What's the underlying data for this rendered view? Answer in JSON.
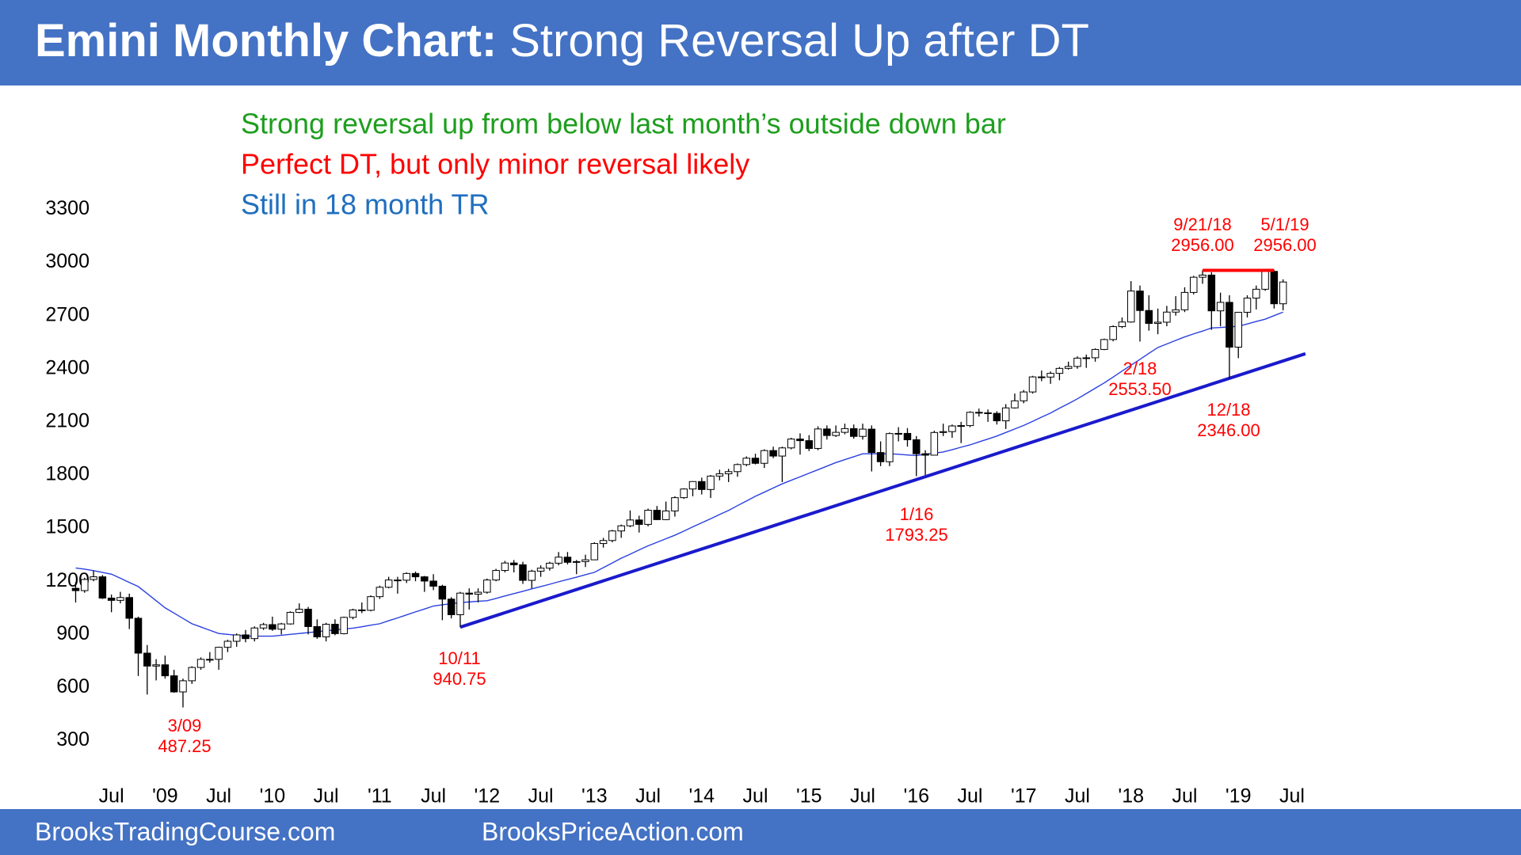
{
  "chart_data": {
    "type": "candlestick",
    "title": "Emini Monthly Chart:",
    "subtitle": "Strong Reversal Up after DT",
    "comments": [
      {
        "text": "Strong reversal up from below last month’s outside down bar",
        "color": "#1e9e1e"
      },
      {
        "text": "Perfect DT, but only minor reversal likely",
        "color": "#ff0000"
      },
      {
        "text": "Still in 18 month TR",
        "color": "#1f6fbf"
      }
    ],
    "categories": [
      null,
      null,
      null,
      null,
      "Jul",
      null,
      null,
      null,
      null,
      null,
      "'09",
      null,
      null,
      null,
      null,
      null,
      "Jul",
      null,
      null,
      null,
      null,
      null,
      "'10",
      null,
      null,
      null,
      null,
      null,
      "Jul",
      null,
      null,
      null,
      null,
      null,
      "'11",
      null,
      null,
      null,
      null,
      null,
      "Jul",
      null,
      null,
      null,
      null,
      null,
      "'12",
      null,
      null,
      null,
      null,
      null,
      "Jul",
      null,
      null,
      null,
      null,
      null,
      "'13",
      null,
      null,
      null,
      null,
      null,
      "Jul",
      null,
      null,
      null,
      null,
      null,
      "'14",
      null,
      null,
      null,
      null,
      null,
      "Jul",
      null,
      null,
      null,
      null,
      null,
      "'15",
      null,
      null,
      null,
      null,
      null,
      "Jul",
      null,
      null,
      null,
      null,
      null,
      "'16",
      null,
      null,
      null,
      null,
      null,
      "Jul",
      null,
      null,
      null,
      null,
      null,
      "'17",
      null,
      null,
      null,
      null,
      null,
      "Jul",
      null,
      null,
      null,
      null,
      null,
      "'18",
      null,
      null,
      null,
      null,
      null,
      "Jul",
      null,
      null,
      null,
      null,
      null,
      "'19",
      null,
      null,
      null,
      null,
      null,
      "Jul"
    ],
    "open": [
      1160,
      1147,
      1210,
      1225,
      1105,
      1092,
      1108,
      991,
      794,
      721,
      728,
      666,
      575,
      638,
      713,
      759,
      759,
      827,
      861,
      897,
      876,
      936,
      955,
      929,
      959,
      1024,
      1042,
      944,
      886,
      957,
      904,
      996,
      1038,
      1036,
      1113,
      1166,
      1207,
      1206,
      1244,
      1225,
      1201,
      1172,
      1099,
      1011,
      1133,
      1127,
      1138,
      1207,
      1261,
      1303,
      1293,
      1205,
      1257,
      1274,
      1302,
      1336,
      1307,
      1311,
      1321,
      1413,
      1430,
      1484,
      1513,
      1546,
      1521,
      1601,
      1548,
      1597,
      1672,
      1721,
      1763,
      1718,
      1794,
      1807,
      1819,
      1859,
      1895,
      1866,
      1938,
      1907,
      1953,
      2003,
      1994,
      1950,
      2060,
      2023,
      2041,
      2062,
      2018,
      2059,
      1927,
      1875,
      2034,
      2035,
      1999,
      1920,
      1912,
      2040,
      2045,
      2077,
      2079,
      2154,
      2151,
      2148,
      2106,
      2179,
      2219,
      2269,
      2354,
      2353,
      2374,
      2402,
      2413,
      2460,
      2462,
      2509,
      2565,
      2638,
      2664,
      2839,
      2729,
      2656,
      2663,
      2720,
      2733,
      2831,
      2917,
      2929,
      2727,
      2775,
      2522,
      2719,
      2799,
      2849,
      2950,
      2767,
      null
    ],
    "high": [
      1195,
      1220,
      1260,
      1235,
      1125,
      1140,
      1130,
      1000,
      840,
      760,
      780,
      700,
      650,
      720,
      770,
      800,
      830,
      870,
      905,
      925,
      945,
      965,
      1000,
      965,
      1030,
      1075,
      1055,
      985,
      965,
      985,
      1000,
      1045,
      1080,
      1120,
      1175,
      1225,
      1225,
      1250,
      1255,
      1230,
      1240,
      1180,
      1110,
      1140,
      1160,
      1160,
      1215,
      1270,
      1315,
      1320,
      1310,
      1265,
      1290,
      1310,
      1365,
      1365,
      1320,
      1350,
      1420,
      1445,
      1490,
      1520,
      1600,
      1570,
      1610,
      1625,
      1650,
      1680,
      1725,
      1765,
      1785,
      1800,
      1830,
      1835,
      1865,
      1905,
      1920,
      1945,
      1960,
      1960,
      2010,
      2035,
      2025,
      2075,
      2080,
      2080,
      2090,
      2085,
      2090,
      2080,
      1990,
      2040,
      2070,
      2065,
      2020,
      1940,
      2050,
      2090,
      2085,
      2100,
      2160,
      2175,
      2170,
      2160,
      2200,
      2260,
      2280,
      2360,
      2390,
      2385,
      2410,
      2440,
      2470,
      2480,
      2515,
      2570,
      2645,
      2690,
      2895,
      2870,
      2815,
      2740,
      2755,
      2810,
      2860,
      2925,
      2956,
      2945,
      2830,
      2815,
      2720,
      2815,
      2870,
      2955,
      2956,
      2905,
      null
    ],
    "low": [
      1080,
      1135,
      1200,
      1100,
      1025,
      1075,
      930,
      665,
      560,
      640,
      650,
      570,
      487.25,
      620,
      700,
      740,
      700,
      800,
      830,
      855,
      860,
      925,
      920,
      900,
      955,
      1020,
      900,
      875,
      860,
      895,
      900,
      985,
      1020,
      1030,
      1100,
      1160,
      1130,
      1190,
      1200,
      1140,
      1150,
      980,
      990,
      940.75,
      1040,
      1080,
      1130,
      1200,
      1250,
      1250,
      1185,
      1160,
      1225,
      1260,
      1290,
      1295,
      1240,
      1280,
      1320,
      1390,
      1420,
      1445,
      1505,
      1475,
      1510,
      1545,
      1545,
      1565,
      1665,
      1680,
      1690,
      1670,
      1770,
      1760,
      1790,
      1850,
      1860,
      1840,
      1895,
      1760,
      1945,
      1915,
      1935,
      1940,
      2000,
      2015,
      2030,
      2005,
      2000,
      1820,
      1850,
      1850,
      1990,
      1960,
      1793.25,
      1800,
      1910,
      2020,
      2010,
      1980,
      2070,
      2130,
      2100,
      2085,
      2060,
      2175,
      2205,
      2260,
      2330,
      2315,
      2335,
      2395,
      2400,
      2405,
      2440,
      2505,
      2555,
      2630,
      2660,
      2553.5,
      2615,
      2595,
      2640,
      2700,
      2720,
      2820,
      2880,
      2620,
      2640,
      2346,
      2460,
      2690,
      2735,
      2840,
      2740,
      2730,
      null
    ],
    "close": [
      1147,
      1210,
      1225,
      1105,
      1092,
      1108,
      991,
      794,
      721,
      728,
      666,
      575,
      638,
      713,
      759,
      759,
      827,
      861,
      897,
      876,
      936,
      955,
      929,
      959,
      1024,
      1042,
      944,
      886,
      957,
      904,
      996,
      1038,
      1036,
      1113,
      1166,
      1207,
      1206,
      1244,
      1225,
      1201,
      1172,
      1099,
      1011,
      1133,
      1127,
      1138,
      1207,
      1261,
      1303,
      1293,
      1205,
      1257,
      1274,
      1302,
      1336,
      1307,
      1311,
      1321,
      1413,
      1430,
      1484,
      1513,
      1546,
      1521,
      1601,
      1548,
      1597,
      1672,
      1721,
      1763,
      1718,
      1794,
      1807,
      1819,
      1859,
      1895,
      1866,
      1938,
      1907,
      1953,
      2003,
      1994,
      1950,
      2060,
      2023,
      2041,
      2062,
      2018,
      2059,
      1927,
      1875,
      2034,
      2035,
      1999,
      1920,
      1912,
      2040,
      2045,
      2077,
      2079,
      2154,
      2151,
      2148,
      2106,
      2179,
      2219,
      2269,
      2354,
      2353,
      2374,
      2402,
      2413,
      2460,
      2462,
      2509,
      2565,
      2638,
      2664,
      2839,
      2729,
      2656,
      2663,
      2720,
      2733,
      2831,
      2917,
      2929,
      2727,
      2775,
      2522,
      2719,
      2799,
      2849,
      2950,
      2767,
      2890,
      null
    ],
    "up_color": "#ffffff",
    "down_color": "#000000",
    "moving_average": {
      "color": "#2a3fe0",
      "values": [
        1275,
        1268,
        1260,
        1250,
        1240,
        1217,
        1193,
        1170,
        1130,
        1090,
        1050,
        1020,
        990,
        960,
        942,
        923,
        905,
        900,
        895,
        890,
        890,
        890,
        890,
        895,
        900,
        905,
        910,
        915,
        920,
        925,
        930,
        935,
        943,
        952,
        960,
        977,
        993,
        1010,
        1027,
        1043,
        1060,
        1067,
        1073,
        1080,
        1083,
        1087,
        1090,
        1103,
        1117,
        1130,
        1143,
        1157,
        1170,
        1183,
        1197,
        1210,
        1223,
        1237,
        1250,
        1277,
        1303,
        1330,
        1353,
        1377,
        1400,
        1420,
        1440,
        1460,
        1483,
        1507,
        1530,
        1553,
        1577,
        1600,
        1627,
        1653,
        1680,
        1703,
        1727,
        1750,
        1770,
        1790,
        1810,
        1830,
        1850,
        1870,
        1887,
        1903,
        1920,
        1920,
        1920,
        1920,
        1917,
        1913,
        1910,
        1917,
        1923,
        1930,
        1943,
        1957,
        1970,
        1987,
        2003,
        2020,
        2040,
        2060,
        2080,
        2103,
        2127,
        2150,
        2177,
        2203,
        2230,
        2260,
        2290,
        2320,
        2353,
        2387,
        2420,
        2453,
        2487,
        2520,
        2540,
        2560,
        2580,
        2597,
        2613,
        2630,
        2633,
        2637,
        2640,
        2653,
        2667,
        2680,
        2700,
        2720,
        null
      ]
    },
    "trend_line_color": "#1a1acc",
    "double_top_color": "#ff0000",
    "point_labels": [
      {
        "date": "3/09",
        "price": "487.25"
      },
      {
        "date": "10/11",
        "price": "940.75"
      },
      {
        "date": "1/16",
        "price": "1793.25"
      },
      {
        "date": "2/18",
        "price": "2553.50"
      },
      {
        "date": "12/18",
        "price": "2346.00"
      },
      {
        "date": "9/21/18",
        "price": "2956.00"
      },
      {
        "date": "5/1/19",
        "price": "2956.00"
      }
    ],
    "label_color": "#ff0000",
    "ylim": [
      300,
      3300
    ],
    "yticks": [
      300,
      600,
      900,
      1200,
      1500,
      1800,
      2100,
      2400,
      2700,
      3000,
      3300
    ]
  },
  "footer": {
    "left": "BrooksTradingCourse.com",
    "right": "BrooksPriceAction.com"
  }
}
